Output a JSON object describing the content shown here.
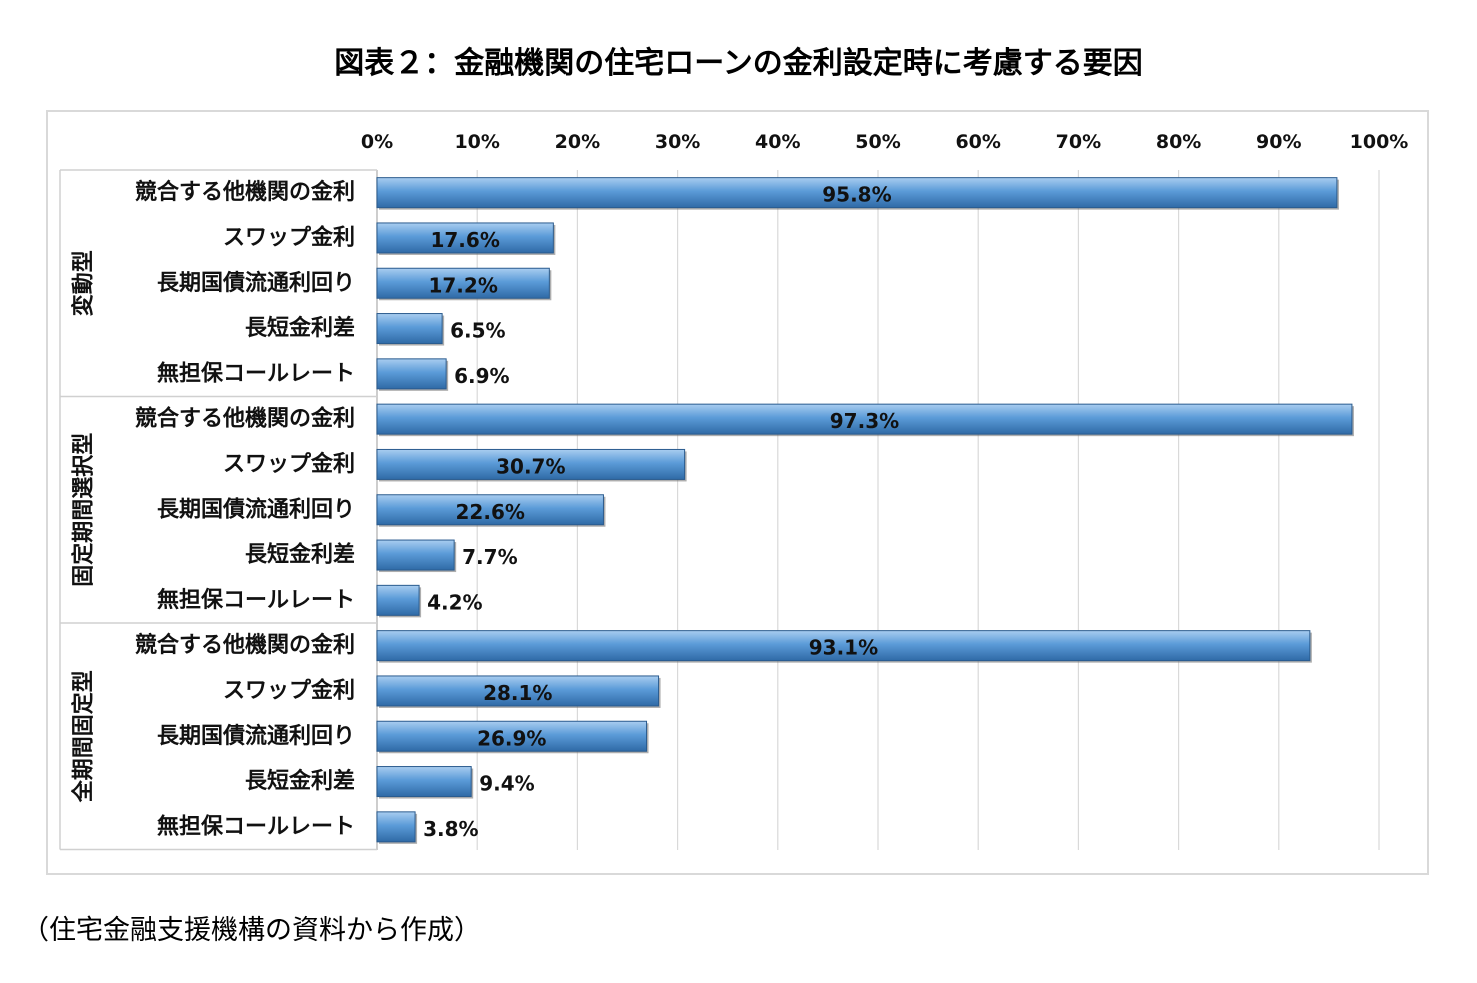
{
  "chart_data": {
    "type": "bar",
    "orientation": "horizontal",
    "title": "図表２：金融機関の住宅ローンの金利設定時に考慮する要因",
    "xlim": [
      0,
      100
    ],
    "x_ticks": [
      "0%",
      "10%",
      "20%",
      "30%",
      "40%",
      "50%",
      "60%",
      "70%",
      "80%",
      "90%",
      "100%"
    ],
    "grid": "vertical",
    "bar_color": "#4f8fcc",
    "groups": [
      {
        "name": "変動型",
        "categories": [
          "競合する他機関の金利",
          "スワップ金利",
          "長期国債流通利回り",
          "長短金利差",
          "無担保コールレート"
        ],
        "values": [
          95.8,
          17.6,
          17.2,
          6.5,
          6.9
        ],
        "labels": [
          "95.8%",
          "17.6%",
          "17.2%",
          "6.5%",
          "6.9%"
        ]
      },
      {
        "name": "固定期間選択型",
        "categories": [
          "競合する他機関の金利",
          "スワップ金利",
          "長期国債流通利回り",
          "長短金利差",
          "無担保コールレート"
        ],
        "values": [
          97.3,
          30.7,
          22.6,
          7.7,
          4.2
        ],
        "labels": [
          "97.3%",
          "30.7%",
          "22.6%",
          "7.7%",
          "4.2%"
        ]
      },
      {
        "name": "全期間固定型",
        "categories": [
          "競合する他機関の金利",
          "スワップ金利",
          "長期国債流通利回り",
          "長短金利差",
          "無担保コールレート"
        ],
        "values": [
          93.1,
          28.1,
          26.9,
          9.4,
          3.8
        ],
        "labels": [
          "93.1%",
          "28.1%",
          "26.9%",
          "9.4%",
          "3.8%"
        ]
      }
    ]
  },
  "footer": {
    "source": "（住宅金融支援機構の資料から作成）"
  }
}
